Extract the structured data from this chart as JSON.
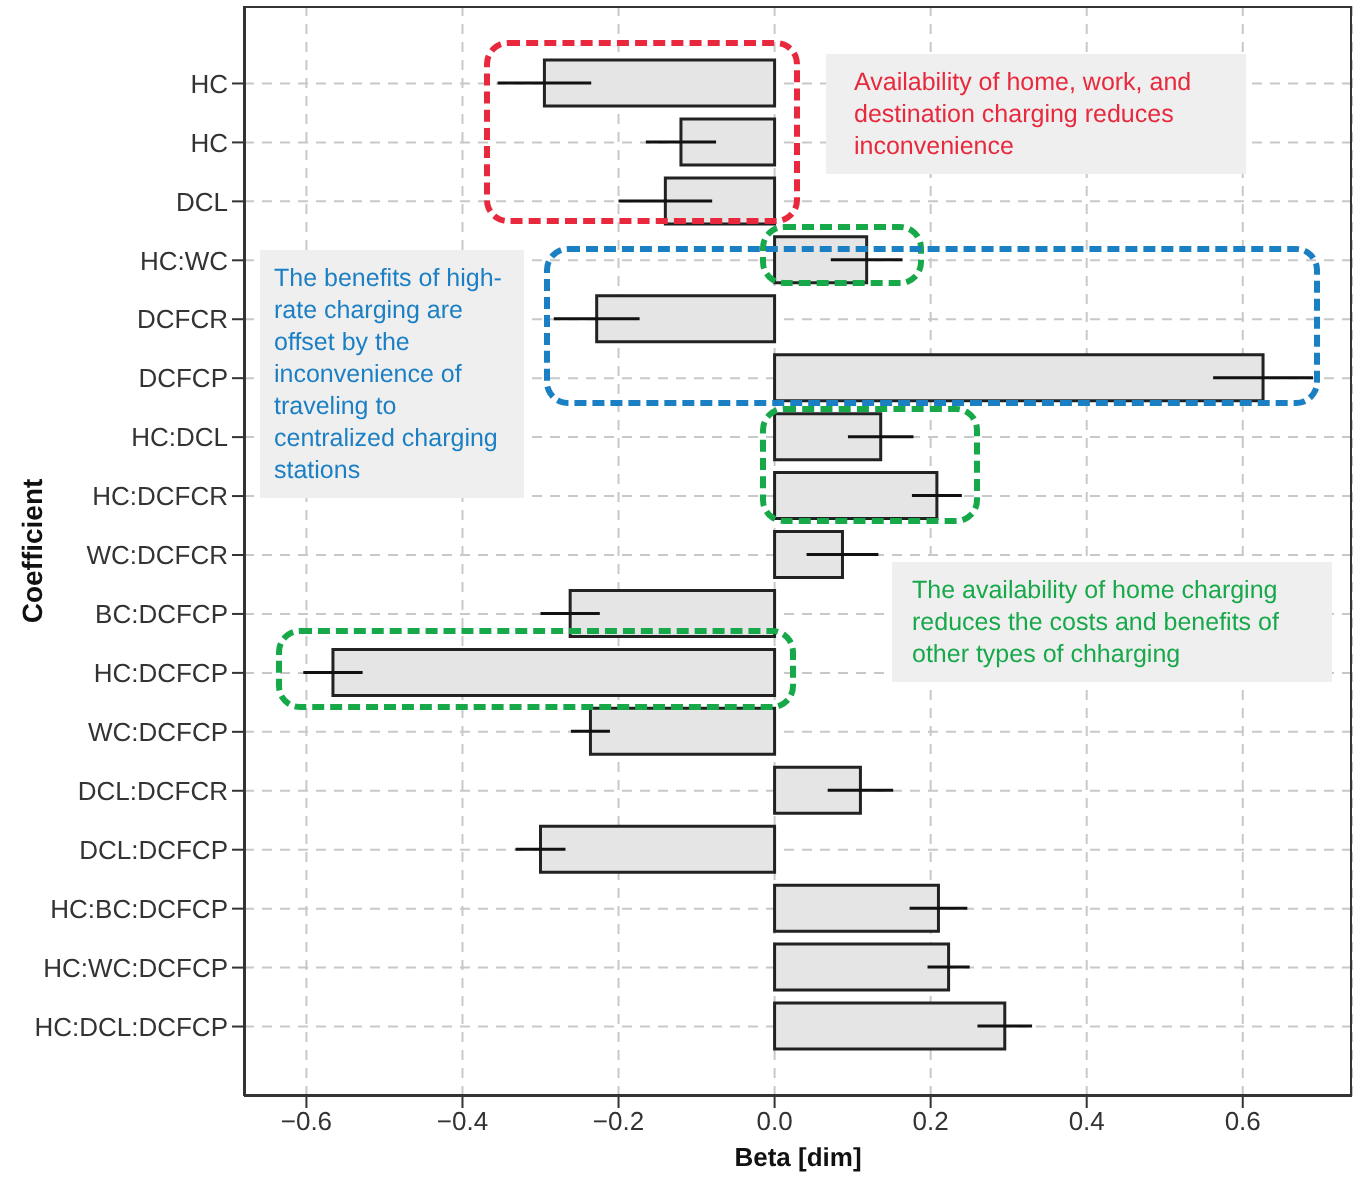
{
  "chart_data": {
    "type": "bar",
    "orientation": "horizontal",
    "xlabel": "Beta [dim]",
    "ylabel": "Coefficient",
    "categories": [
      "HC",
      "HC",
      "DCL",
      "HC:WC",
      "DCFCR",
      "DCFCP",
      "HC:DCL",
      "HC:DCFCR",
      "WC:DCFCR",
      "BC:DCFCP",
      "HC:DCFCP",
      "WC:DCFCP",
      "DCL:DCFCR",
      "DCL:DCFCP",
      "HC:BC:DCFCP",
      "HC:WC:DCFCP",
      "HC:DCL:DCFCP"
    ],
    "values": [
      -0.295,
      -0.12,
      -0.14,
      0.118,
      -0.228,
      0.626,
      0.136,
      0.208,
      0.087,
      -0.262,
      -0.566,
      -0.236,
      0.11,
      -0.3,
      0.21,
      0.223,
      0.295
    ],
    "errors": [
      0.06,
      0.045,
      0.06,
      0.046,
      0.055,
      0.064,
      0.042,
      0.032,
      0.046,
      0.038,
      0.038,
      0.025,
      0.042,
      0.032,
      0.037,
      0.027,
      0.035
    ],
    "color": "#e5e5e5",
    "xlim": [
      -0.68,
      0.74
    ],
    "xticks": [
      {
        "value": -0.6,
        "label": "−0.6"
      },
      {
        "value": -0.4,
        "label": "−0.4"
      },
      {
        "value": -0.2,
        "label": "−0.2"
      },
      {
        "value": 0,
        "label": "0.0"
      },
      {
        "value": 0.2,
        "label": "0.2"
      },
      {
        "value": 0.4,
        "label": "0.4"
      },
      {
        "value": 0.6,
        "label": "0.6"
      }
    ],
    "grid": true,
    "annotations": [
      "Availability of home, work, and destination charging reduces inconvenience",
      "The benefits of high-rate charging are offset by the inconvenience of traveling to centralized charging stations",
      "The availability of home charging reduces the costs and benefits of other types of chharging"
    ]
  }
}
